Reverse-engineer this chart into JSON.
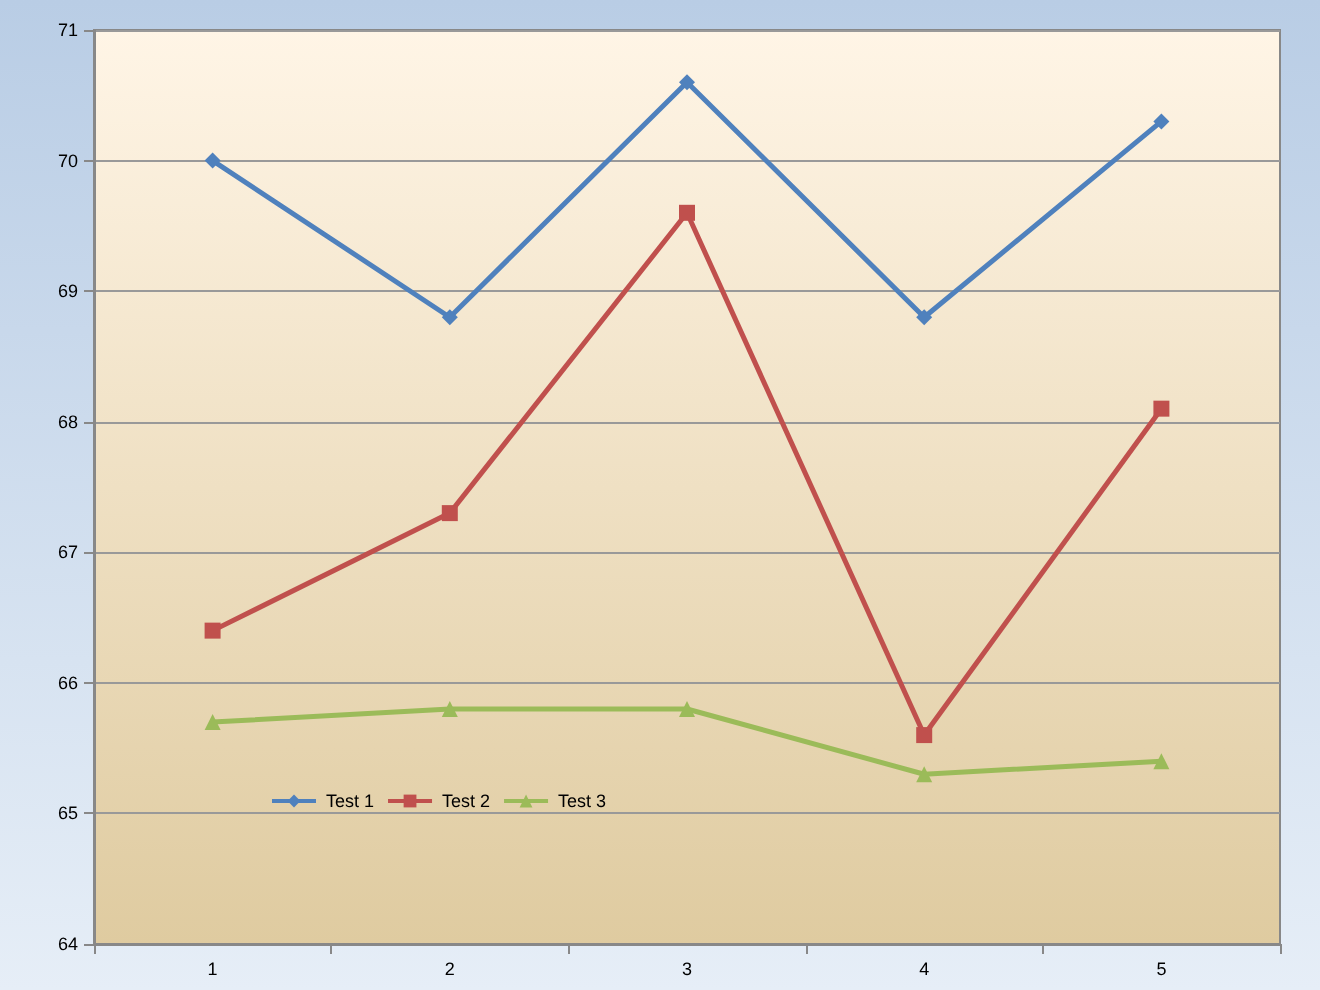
{
  "chart_data": {
    "type": "line",
    "categories": [
      "1",
      "2",
      "3",
      "4",
      "5"
    ],
    "series": [
      {
        "name": "Test 1",
        "color": "#4f81bd",
        "marker": "diamond",
        "values": [
          70.0,
          68.8,
          70.6,
          68.8,
          70.3
        ]
      },
      {
        "name": "Test 2",
        "color": "#c0504d",
        "marker": "square",
        "values": [
          66.4,
          67.3,
          69.6,
          65.6,
          68.1
        ]
      },
      {
        "name": "Test 3",
        "color": "#9bbb59",
        "marker": "triangle",
        "values": [
          65.7,
          65.8,
          65.8,
          65.3,
          65.4
        ]
      }
    ],
    "ylim": [
      64,
      71
    ],
    "yticks": [
      64,
      65,
      66,
      67,
      68,
      69,
      70,
      71
    ],
    "grid": "y",
    "legend": "bottom left"
  }
}
